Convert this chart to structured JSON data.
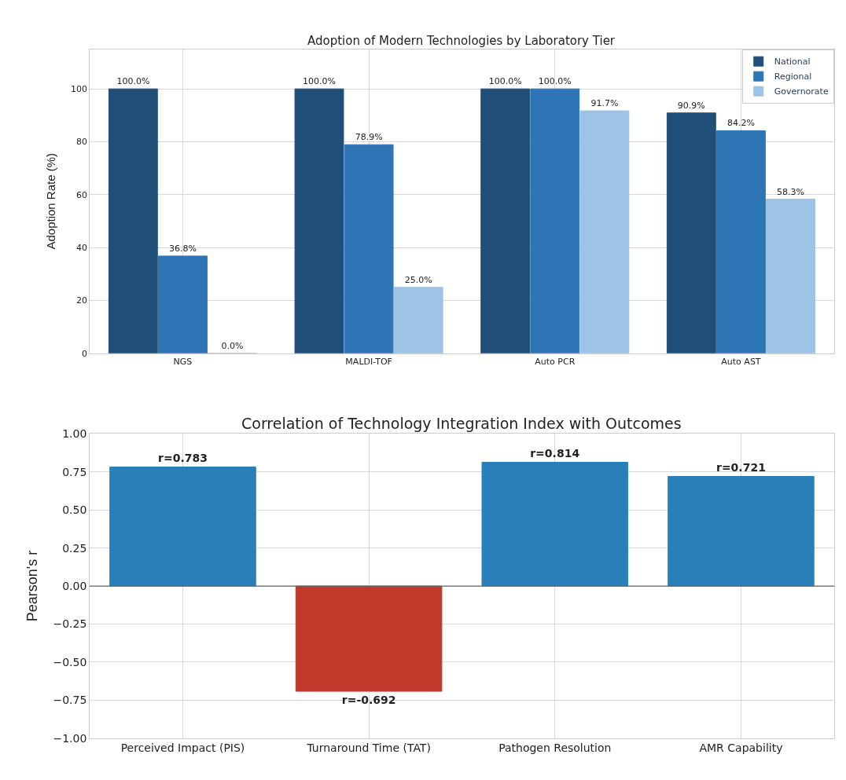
{
  "chart_data": [
    {
      "type": "bar",
      "title": "Adoption of Modern Technologies by Laboratory Tier",
      "ylabel": "Adoption Rate (%)",
      "categories": [
        "NGS",
        "MALDI-TOF",
        "Auto PCR",
        "Auto AST"
      ],
      "series": [
        {
          "name": "National",
          "color": "#1f4e79",
          "values": [
            100.0,
            100.0,
            100.0,
            90.9
          ],
          "value_labels": [
            "100.0%",
            "100.0%",
            "100.0%",
            "90.9%"
          ]
        },
        {
          "name": "Regional",
          "color": "#2e75b6",
          "values": [
            36.8,
            78.9,
            100.0,
            84.2
          ],
          "value_labels": [
            "36.8%",
            "78.9%",
            "100.0%",
            "84.2%"
          ]
        },
        {
          "name": "Governorate",
          "color": "#9dc3e6",
          "values": [
            0.0,
            25.0,
            91.7,
            58.3
          ],
          "value_labels": [
            "0.0%",
            "25.0%",
            "91.7%",
            "58.3%"
          ]
        }
      ],
      "ylim": [
        0,
        115
      ],
      "yticks": [
        0,
        20,
        40,
        60,
        80,
        100
      ],
      "grid": true,
      "legend": "top right"
    },
    {
      "type": "bar",
      "title": "Correlation of Technology Integration Index with Outcomes",
      "ylabel": "Pearson's r",
      "categories": [
        "Perceived Impact (PIS)",
        "Turnaround Time (TAT)",
        "Pathogen Resolution",
        "AMR Capability"
      ],
      "values": [
        0.783,
        -0.692,
        0.814,
        0.721
      ],
      "colors": [
        "#2980b9",
        "#c0392b",
        "#2980b9",
        "#2980b9"
      ],
      "value_labels": [
        "r=0.783",
        "r=-0.692",
        "r=0.814",
        "r=0.721"
      ],
      "ylim": [
        -1.0,
        1.0
      ],
      "yticks": [
        {
          "value": -1.0,
          "label": "−1.00"
        },
        {
          "value": -0.75,
          "label": "−0.75"
        },
        {
          "value": -0.5,
          "label": "−0.50"
        },
        {
          "value": -0.25,
          "label": "−0.25"
        },
        {
          "value": 0.0,
          "label": "0.00"
        },
        {
          "value": 0.25,
          "label": "0.25"
        },
        {
          "value": 0.5,
          "label": "0.50"
        },
        {
          "value": 0.75,
          "label": "0.75"
        },
        {
          "value": 1.0,
          "label": "1.00"
        }
      ],
      "grid": true,
      "ref_lines": [
        {
          "axis": "y",
          "value": 0,
          "color": "#666666"
        }
      ]
    }
  ]
}
